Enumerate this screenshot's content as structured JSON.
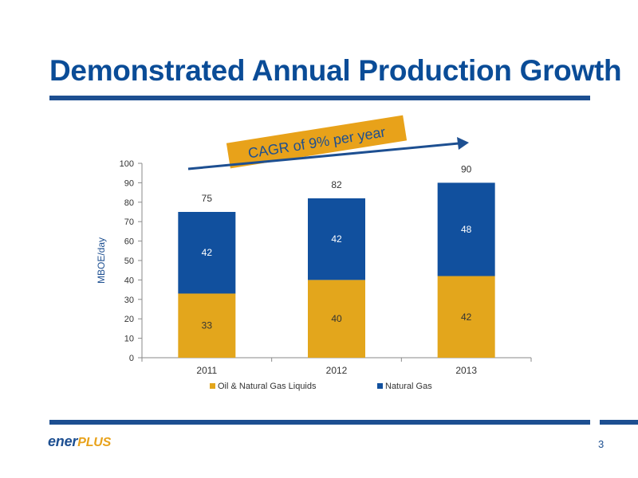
{
  "slide": {
    "title": "Demonstrated Annual Production Growth",
    "page_number": "3",
    "logo": {
      "part1": "ener",
      "part2": "PLUS"
    }
  },
  "colors": {
    "title": "#0a4c97",
    "rule": "#1d4f91",
    "oil": "#e3a61c",
    "gas": "#11509e",
    "banner": "#e8a21a",
    "arrow": "#1d4f91"
  },
  "chart_data": {
    "type": "bar",
    "stacked": true,
    "categories": [
      "2011",
      "2012",
      "2013"
    ],
    "series": [
      {
        "name": "Oil & Natural Gas Liquids",
        "values": [
          33,
          40,
          42
        ]
      },
      {
        "name": "Natural Gas",
        "values": [
          42,
          42,
          48
        ]
      }
    ],
    "totals": [
      75,
      82,
      90
    ],
    "title": "",
    "xlabel": "",
    "ylabel": "MBOE/day",
    "ylim": [
      0,
      100
    ],
    "yticks": [
      0,
      10,
      20,
      30,
      40,
      50,
      60,
      70,
      80,
      90,
      100
    ],
    "legend_position": "bottom",
    "grid": false,
    "annotation": "CAGR of 9% per year"
  }
}
